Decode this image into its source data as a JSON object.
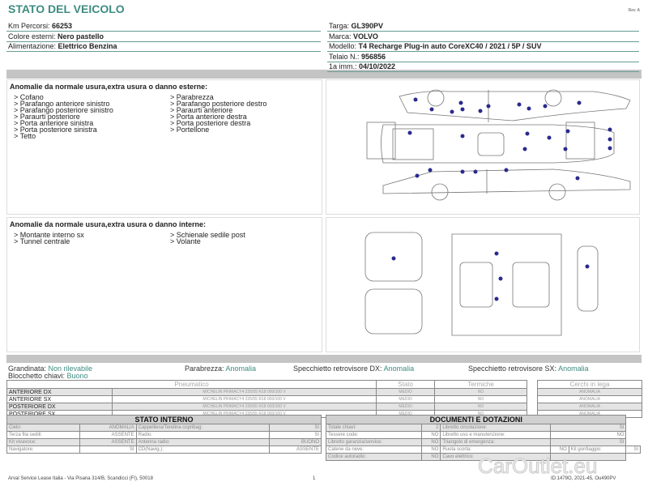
{
  "header": {
    "title": "STATO DEL VEICOLO",
    "rev": "Rev. A"
  },
  "vehicle_left": [
    {
      "label": "Km Percorsi: ",
      "value": "66253"
    },
    {
      "label": "Colore esterni: ",
      "value": "Nero pastello"
    },
    {
      "label": "Alimentazione: ",
      "value": "Elettrico Benzina"
    }
  ],
  "vehicle_right": [
    {
      "label": "Targa: ",
      "value": "GL390PV"
    },
    {
      "label": "Marca: ",
      "value": "VOLVO"
    },
    {
      "label": "Modello: ",
      "value": "T4 Recharge Plug-in auto CoreXC40 / 2021 / 5P / SUV"
    },
    {
      "label": "Telaio N.: ",
      "value": "956856"
    },
    {
      "label": "1a imm.: ",
      "value": "04/10/2022"
    }
  ],
  "exterior": {
    "title": "Anomalie da normale usura,extra usura o danno esterne:",
    "items": [
      "> Cofano",
      "> Parabrezza",
      "> Parafango anteriore sinistro",
      "> Parafango posteriore destro",
      "> Parafango posteriore sinistro",
      "> Paraurti anteriore",
      "> Paraurti posteriore",
      "> Porta anteriore destra",
      "> Porta anteriore sinistra",
      "> Porta posteriore destra",
      "> Porta posteriore sinistra",
      "> Portellone",
      "> Tetto"
    ]
  },
  "interior": {
    "title": "Anomalie da normale usura,extra usura o danno interne:",
    "items": [
      "> Montante interno sx",
      "> Schienale sedile post",
      "> Tunnel centrale",
      "> Volante"
    ]
  },
  "info": {
    "grandinata": {
      "label": "Grandinata: ",
      "value": "Non rilevabile"
    },
    "parabrezza": {
      "label": "Parabrezza: ",
      "value": "Anomalia"
    },
    "spec_dx": {
      "label": "Specchietto retrovisore DX: ",
      "value": "Anomalia"
    },
    "spec_sx": {
      "label": "Specchietto retrovisore SX: ",
      "value": "Anomalia"
    },
    "blocchetto": {
      "label": "Blocchetto chiavi: ",
      "value": "Buono"
    }
  },
  "tires": {
    "headers": [
      "Pneumatico",
      "Stato",
      "Termiche"
    ],
    "cerchi_header": "Cerchi in lega",
    "rows": [
      {
        "pos": "ANTERIORE DX",
        "tire": "MICHELIN PRIMACY4 235/55 R18 000/100 V",
        "stato": "MEDIO",
        "termiche": "NO",
        "cerchi": "ANOMALIA"
      },
      {
        "pos": "ANTERIORE SX",
        "tire": "MICHELIN PRIMACY4 235/55 R18 000/100 V",
        "stato": "MEDIO",
        "termiche": "NO",
        "cerchi": "ANOMALIA"
      },
      {
        "pos": "POSTERIORE DX",
        "tire": "MICHELIN PRIMACY4 235/55 R18 000/100 V",
        "stato": "MEDIO",
        "termiche": "NO",
        "cerchi": "ANOMALIA"
      },
      {
        "pos": "POSTERIORE SX",
        "tire": "MICHELIN PRIMACY4 235/55 R18 000/100 V",
        "stato": "MEDIO",
        "termiche": "NO",
        "cerchi": "ANOMALIA"
      }
    ]
  },
  "stato_interno": {
    "title": "STATO INTERNO",
    "rows": [
      [
        "Cielo:",
        "ANOMALIA",
        "Cappelliera/Tendina copribag:",
        "SI"
      ],
      [
        "Terza fila sedili:",
        "ASSENTE",
        "Radio:",
        "SI"
      ],
      [
        "Kit vivavoce:",
        "ASSENTE",
        "Antenna radio:",
        "BUONO"
      ],
      [
        "Navigatore:",
        "SI",
        "CD(Navig.):",
        "ASSENTE"
      ]
    ]
  },
  "documenti": {
    "title": "DOCUMENTI E DOTAZIONI",
    "rows": [
      [
        "Totale chiavi:",
        "2",
        "Libretto circolazione:",
        "SI"
      ],
      [
        "Tessere code:",
        "NO",
        "Libretto uso e manutenzione:",
        "NO"
      ],
      [
        "Libretto garanzia/service:",
        "NO",
        "Triangolo di emergenza:",
        "SI"
      ],
      [
        "Catene da neve:",
        "NO",
        "Ruota scorta:",
        "NO"
      ],
      [
        "Codice autoradio:",
        "NO",
        "Cavo elettrico:",
        ""
      ]
    ],
    "kit": {
      "label": "Kit gonfiaggio:",
      "value": "SI"
    }
  },
  "footer": {
    "address": "Arval Service Lease Italia - Via Pisana 314/B, Scandicci (FI), 50018",
    "page": "1",
    "code": "ID:1479O, 2021-45, Ou490PV"
  },
  "watermark": "CarOutlet.eu",
  "colors": {
    "accent": "#3d8c80",
    "dot": "#2a2a8c",
    "band": "#c4c4c4"
  }
}
